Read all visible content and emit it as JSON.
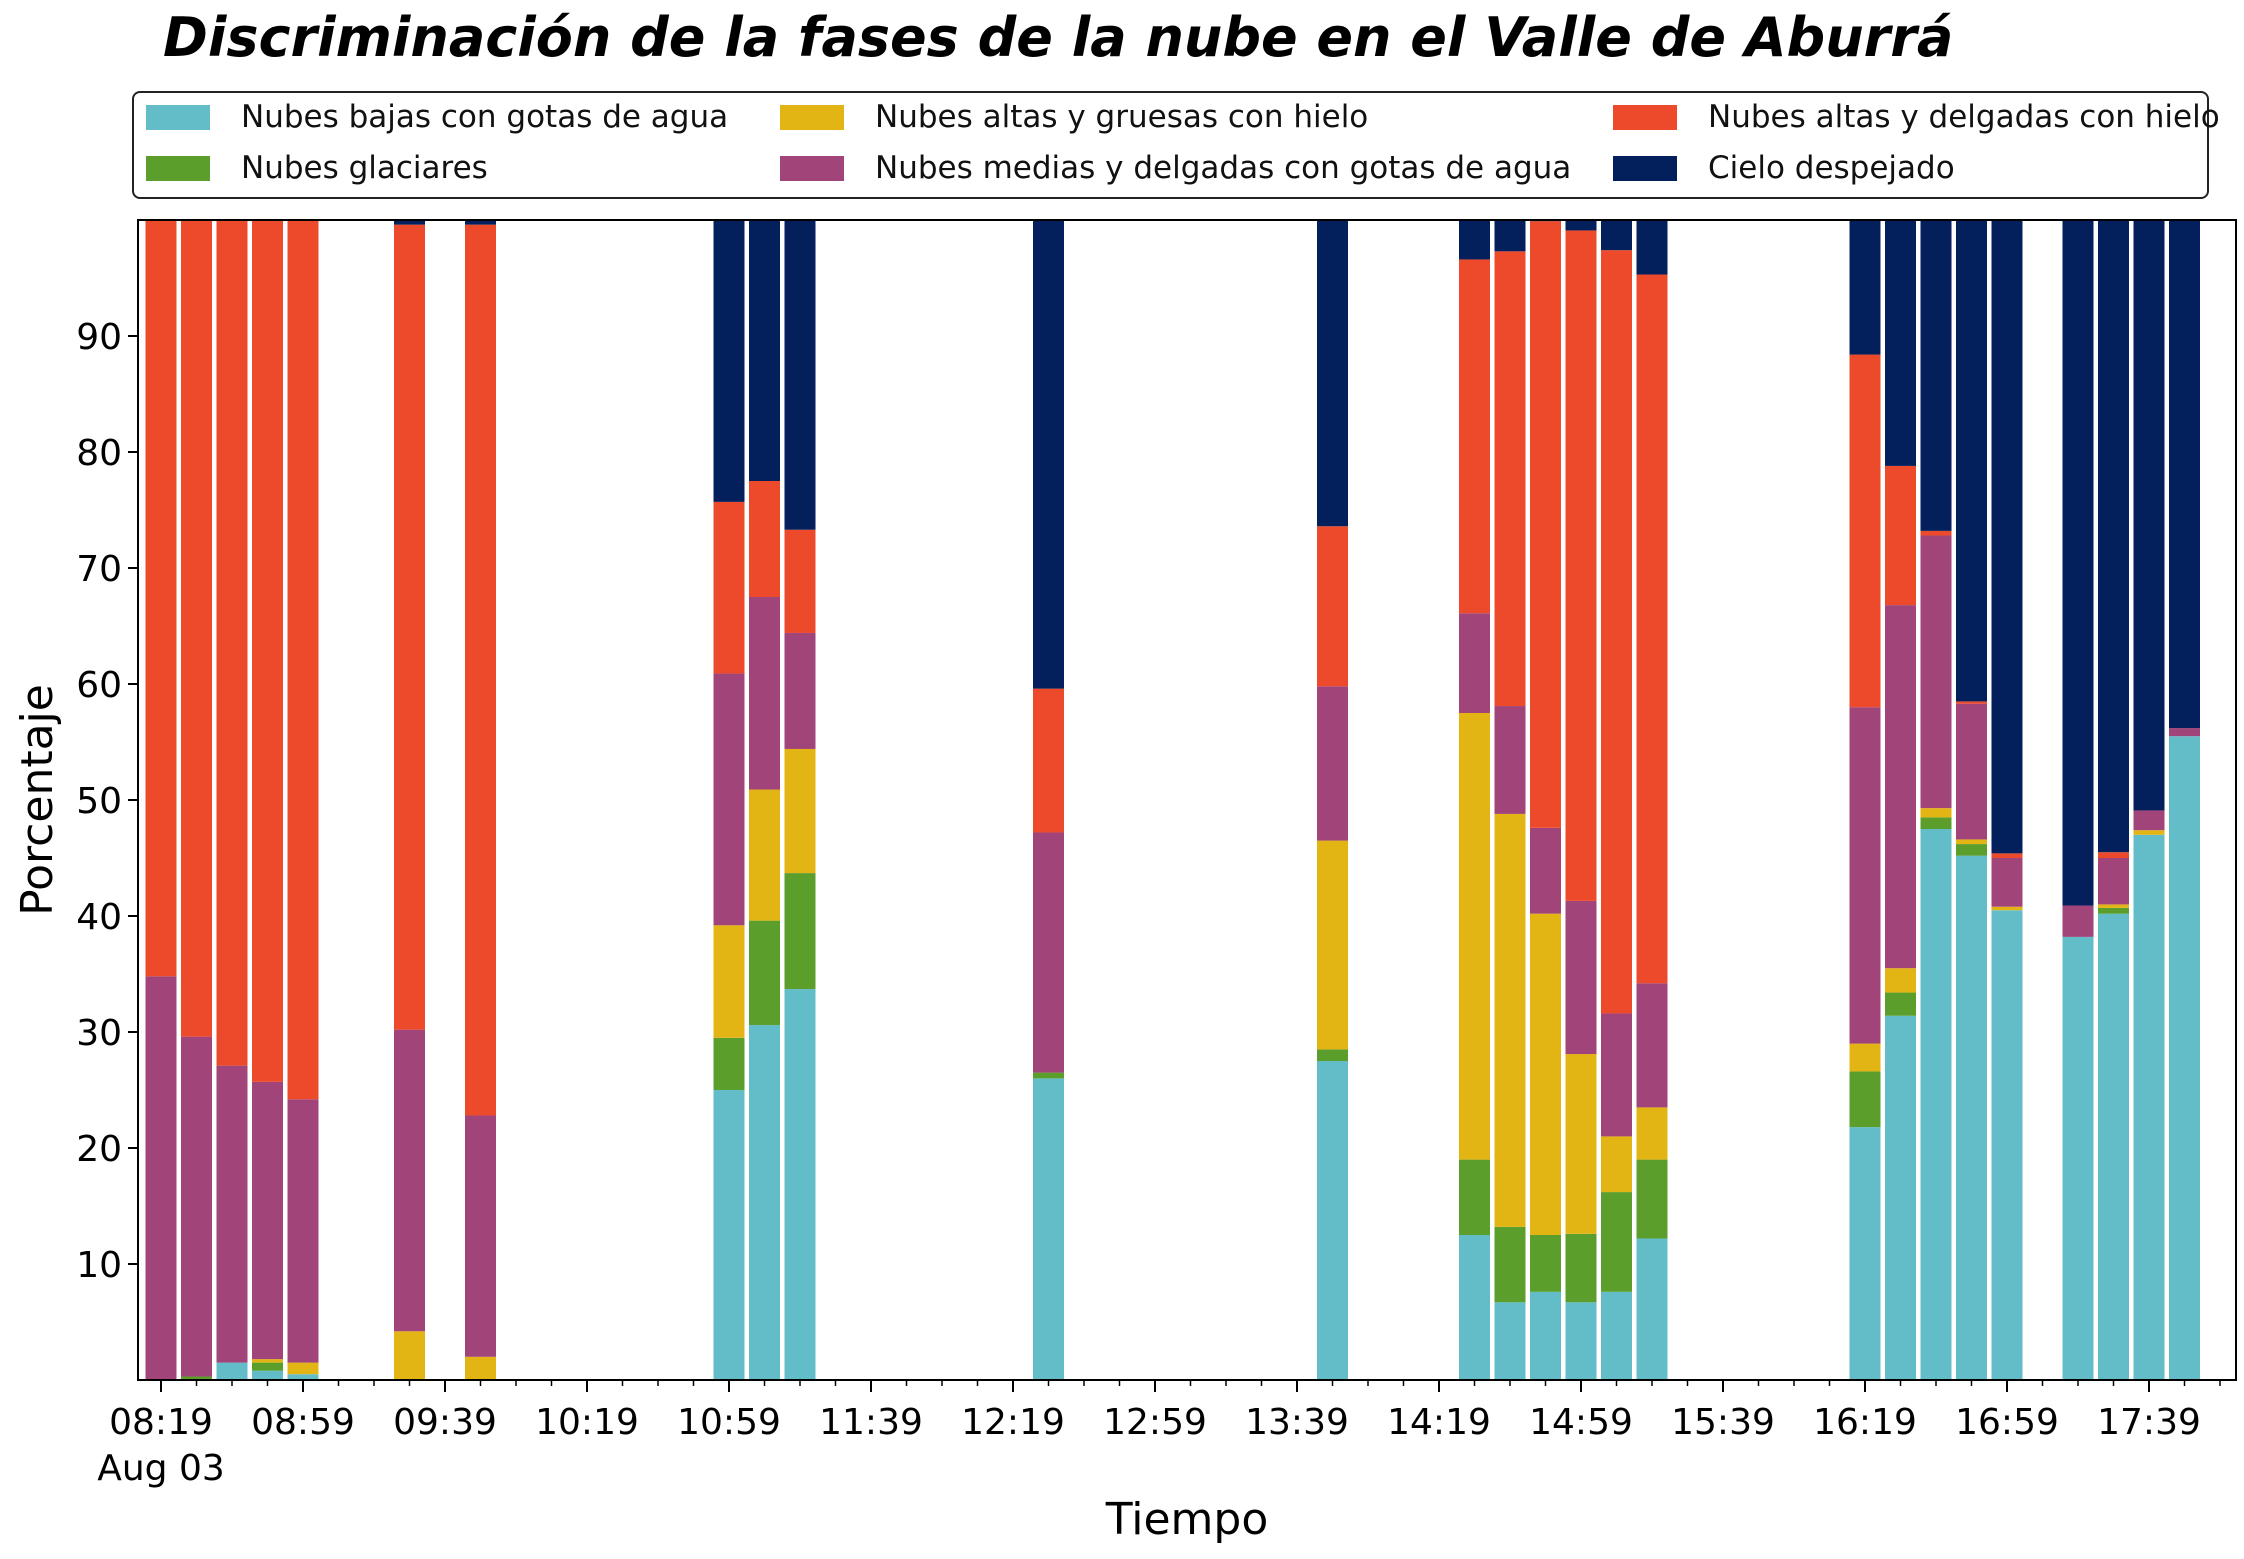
{
  "chart_data": {
    "type": "bar",
    "stacked": true,
    "title": "Discriminación de la fases de la nube en el Valle de Aburrá",
    "xlabel": "Tiempo",
    "ylabel": "Porcentaje",
    "ylim": [
      0,
      100
    ],
    "yticks": [
      10,
      20,
      30,
      40,
      50,
      60,
      70,
      80,
      90
    ],
    "grid": false,
    "legend_position": "top",
    "x_tick_labels": [
      "08:19",
      "08:59",
      "09:39",
      "10:19",
      "10:59",
      "11:39",
      "12:19",
      "12:59",
      "13:39",
      "14:19",
      "14:59",
      "15:39",
      "16:19",
      "16:59",
      "17:39"
    ],
    "x_date_label": "Aug 03",
    "x": [
      "08:19",
      "08:29",
      "08:39",
      "08:49",
      "08:59",
      "09:29",
      "09:49",
      "10:59",
      "11:09",
      "11:19",
      "12:29",
      "13:49",
      "14:29",
      "14:39",
      "14:49",
      "14:59",
      "15:09",
      "15:19",
      "16:19",
      "16:29",
      "16:39",
      "16:49",
      "16:59",
      "17:19",
      "17:29",
      "17:39",
      "17:49"
    ],
    "series": [
      {
        "name": "Nubes bajas con gotas de agua",
        "color": "#63bdc9",
        "values": [
          0,
          0,
          1.5,
          0.8,
          0.5,
          0,
          0,
          25,
          30.6,
          33.7,
          26,
          27.5,
          12.5,
          6.7,
          7.6,
          6.7,
          7.6,
          12.2,
          21.8,
          31.4,
          47.5,
          45.2,
          40.5,
          38.2,
          40.2,
          47,
          55.5
        ]
      },
      {
        "name": "Nubes glaciares",
        "color": "#5c9e2b",
        "values": [
          0,
          0.3,
          0,
          0.7,
          0,
          0,
          0,
          4.5,
          9,
          10,
          0.5,
          1,
          6.5,
          6.5,
          4.9,
          5.9,
          8.6,
          6.8,
          4.8,
          2,
          1,
          1,
          0,
          0,
          0.5,
          0,
          0
        ]
      },
      {
        "name": "Nubes altas y gruesas con hielo",
        "color": "#e3b514",
        "values": [
          0,
          0,
          0,
          0.3,
          1,
          4.2,
          2,
          9.7,
          11.3,
          10.7,
          0,
          18,
          38.5,
          35.6,
          27.7,
          15.5,
          4.8,
          4.5,
          2.4,
          2.1,
          0.8,
          0.4,
          0.3,
          0,
          0.3,
          0.4,
          0
        ]
      },
      {
        "name": "Nubes medias y delgadas con gotas de agua",
        "color": "#a14479",
        "values": [
          34.8,
          29.3,
          25.6,
          23.9,
          22.7,
          26,
          20.8,
          21.7,
          16.6,
          10,
          20.7,
          13.3,
          8.6,
          9.3,
          7.4,
          13.2,
          10.6,
          10.7,
          29,
          31.3,
          23.5,
          11.7,
          4.2,
          2.7,
          4,
          1.7,
          0.7
        ]
      },
      {
        "name": "Nubes altas y delgadas con hielo",
        "color": "#ed4a2c",
        "values": [
          65.2,
          70.4,
          72.9,
          74.3,
          75.8,
          69.4,
          76.8,
          14.8,
          10,
          8.9,
          12.4,
          13.8,
          30.5,
          39.2,
          52.3,
          57.8,
          65.8,
          61.1,
          30.4,
          12,
          0.4,
          0.2,
          0.4,
          0,
          0.5,
          0,
          0
        ]
      },
      {
        "name": "Cielo despejado",
        "color": "#031f5c",
        "values": [
          0,
          0,
          0,
          0,
          0,
          0.4,
          0.4,
          24.3,
          22.5,
          26.7,
          40.4,
          26.4,
          3.4,
          2.7,
          0.1,
          0.9,
          2.6,
          4.7,
          11.6,
          21.2,
          26.8,
          41.5,
          54.6,
          59.1,
          54.5,
          50.9,
          43.8
        ]
      }
    ]
  }
}
